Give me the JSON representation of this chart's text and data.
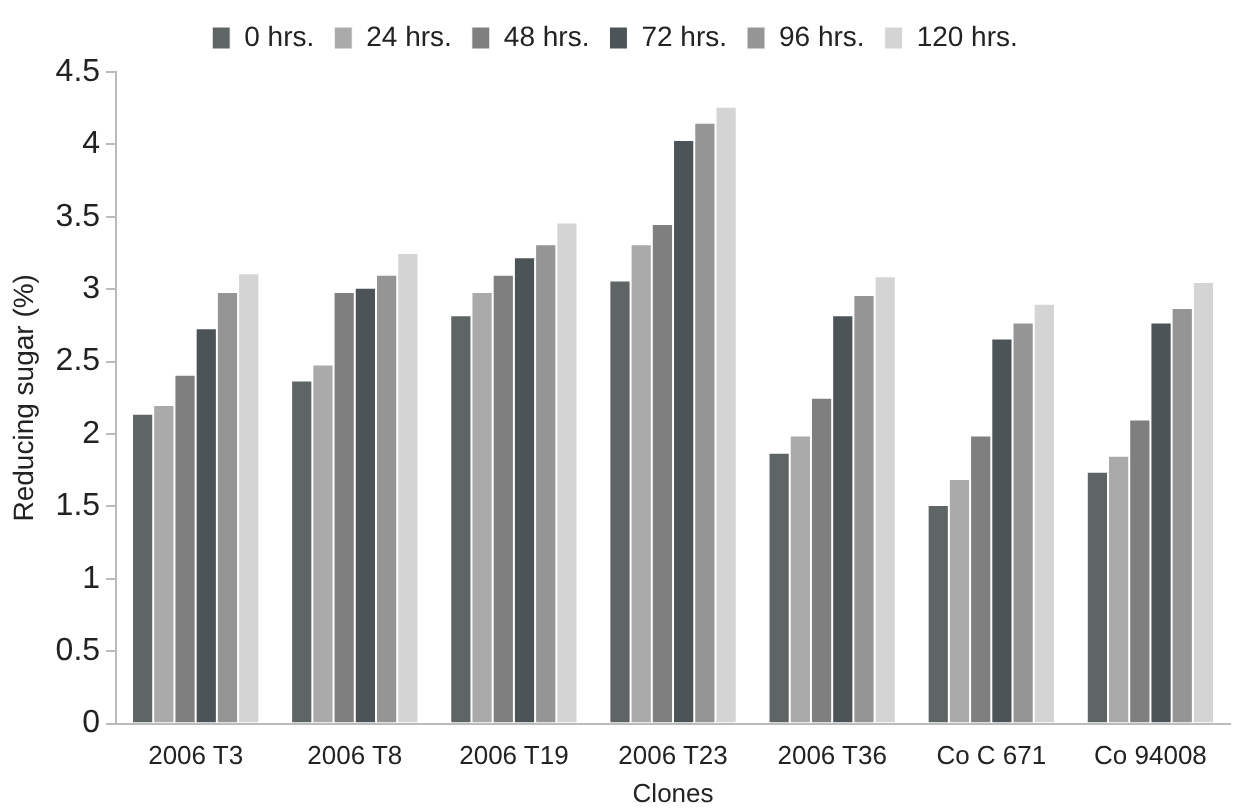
{
  "chart_data": {
    "type": "bar",
    "xlabel": "Clones",
    "ylabel": "Reducing sugar (%)",
    "categories": [
      "2006 T3",
      "2006 T8",
      "2006 T19",
      "2006 T23",
      "2006 T36",
      "Co C 671",
      "Co 94008"
    ],
    "series": [
      {
        "name": "0 hrs.",
        "color": "#5f6565",
        "values": [
          2.14,
          2.37,
          2.82,
          3.06,
          1.87,
          1.51,
          1.74
        ]
      },
      {
        "name": "24 hrs.",
        "color": "#aaaaaa",
        "values": [
          2.2,
          2.48,
          2.98,
          3.31,
          1.99,
          1.69,
          1.85
        ]
      },
      {
        "name": "48 hrs.",
        "color": "#7f7f7f",
        "values": [
          2.41,
          2.98,
          3.1,
          3.45,
          2.25,
          1.99,
          2.1
        ]
      },
      {
        "name": "72 hrs.",
        "color": "#4d5457",
        "values": [
          2.73,
          3.01,
          3.22,
          4.03,
          2.82,
          2.66,
          2.77
        ]
      },
      {
        "name": "96 hrs.",
        "color": "#959595",
        "values": [
          2.98,
          3.1,
          3.31,
          4.15,
          2.96,
          2.77,
          2.87
        ]
      },
      {
        "name": "120 hrs.",
        "color": "#d4d4d4",
        "values": [
          3.11,
          3.25,
          3.46,
          4.26,
          3.09,
          2.9,
          3.05
        ]
      }
    ],
    "ylim": [
      0,
      4.5
    ],
    "yticks": [
      0,
      0.5,
      1,
      1.5,
      2,
      2.5,
      3,
      3.5,
      4,
      4.5
    ],
    "grid": false,
    "legend": "top"
  }
}
